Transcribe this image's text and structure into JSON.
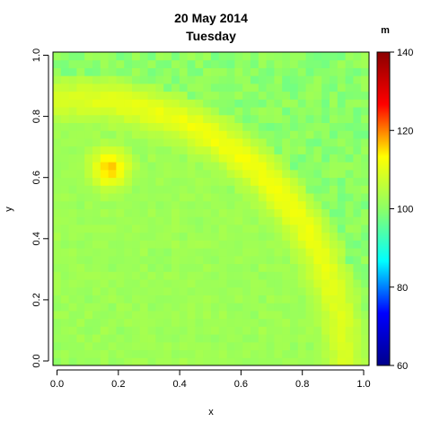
{
  "chart_data": {
    "type": "heatmap",
    "title_line1": "20 May 2014",
    "title_line2": "Tuesday",
    "xlabel": "x",
    "ylabel": "y",
    "colorbar_label": "m",
    "xlim": [
      0,
      1
    ],
    "ylim": [
      0,
      1
    ],
    "x_ticks": [
      "0.0",
      "0.2",
      "0.4",
      "0.6",
      "0.8",
      "1.0"
    ],
    "y_ticks": [
      "0.0",
      "0.2",
      "0.4",
      "0.6",
      "0.8",
      "1.0"
    ],
    "colorbar_range": [
      60,
      140
    ],
    "colorbar_ticks": [
      "60",
      "80",
      "100",
      "120",
      "140"
    ],
    "colormap": [
      "#00008b",
      "#0000ff",
      "#00ffff",
      "#8cff66",
      "#ffff00",
      "#ff0000",
      "#8b0000"
    ],
    "grid_cells": 40,
    "background_value": 102,
    "ridge": {
      "center_x": 0.07,
      "center_y": 0.0,
      "radius": 0.85,
      "ridge_peak_value": 112,
      "inner_value": 100
    },
    "hotspot": {
      "x": 0.18,
      "y": 0.63,
      "value": 121
    }
  }
}
